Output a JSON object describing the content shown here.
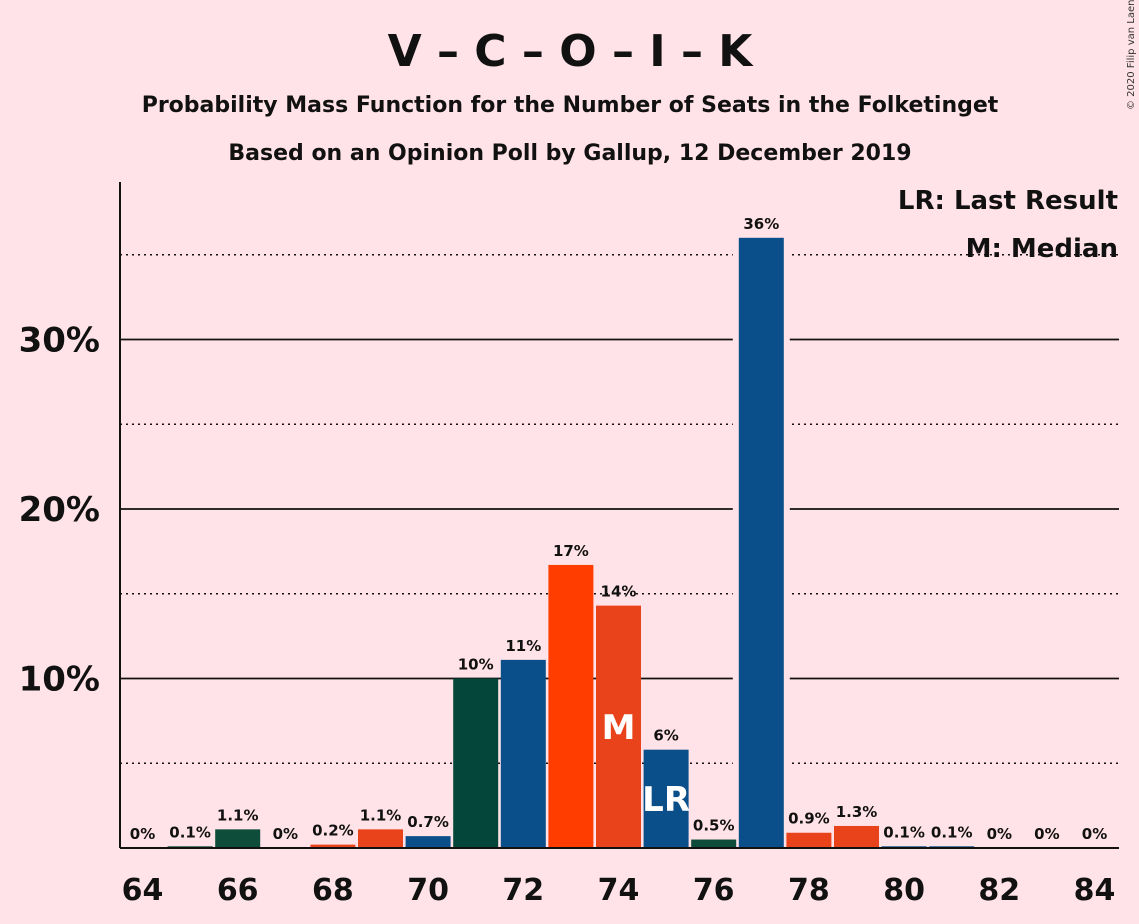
{
  "chart_data": {
    "type": "bar",
    "title": "V – C – O – I – K",
    "subtitle": "Probability Mass Function for the Number of Seats in the Folketinget",
    "subtitle2": "Based on an Opinion Poll by Gallup, 12 December 2019",
    "copyright": "© 2020 Filip van Laenen",
    "legend": {
      "last_result": "LR: Last Result",
      "median": "M: Median",
      "placement": "top-right"
    },
    "x_ticks": [
      "64",
      "66",
      "68",
      "70",
      "72",
      "74",
      "76",
      "78",
      "80",
      "82",
      "84"
    ],
    "y_ticks": [
      {
        "value": 10,
        "label": "10%"
      },
      {
        "value": 20,
        "label": "20%"
      },
      {
        "value": 30,
        "label": "30%"
      }
    ],
    "dotted_gridlines": [
      5,
      15,
      25,
      35
    ],
    "ylim": [
      0,
      39
    ],
    "xlim": [
      63.5,
      84.5
    ],
    "bars": [
      {
        "seats": 64,
        "value": 0,
        "label": "0%",
        "color": "#0E4D3A"
      },
      {
        "seats": 65,
        "value": 0.1,
        "label": "0.1%",
        "color": "#0E4D3A"
      },
      {
        "seats": 66,
        "value": 1.1,
        "label": "1.1%",
        "color": "#0E4D3A"
      },
      {
        "seats": 67,
        "value": 0,
        "label": "0%",
        "color": "#0E4D3A"
      },
      {
        "seats": 68,
        "value": 0.2,
        "label": "0.2%",
        "color": "#E8431A"
      },
      {
        "seats": 69,
        "value": 1.1,
        "label": "1.1%",
        "color": "#E8431A"
      },
      {
        "seats": 70,
        "value": 0.7,
        "label": "0.7%",
        "color": "#0A4E8A"
      },
      {
        "seats": 71,
        "value": 10,
        "label": "10%",
        "color": "#05463A"
      },
      {
        "seats": 72,
        "value": 11.1,
        "label": "11%",
        "color": "#0A4E8A"
      },
      {
        "seats": 73,
        "value": 16.7,
        "label": "17%",
        "color": "#FF3D00"
      },
      {
        "seats": 74,
        "value": 14.3,
        "label": "14%",
        "color": "#E8431A"
      },
      {
        "seats": 75,
        "value": 5.8,
        "label": "6%",
        "color": "#0A4E8A"
      },
      {
        "seats": 76,
        "value": 0.5,
        "label": "0.5%",
        "color": "#0E4D3A"
      },
      {
        "seats": 77,
        "value": 36,
        "label": "36%",
        "color": "#0A4E8A"
      },
      {
        "seats": 78,
        "value": 0.9,
        "label": "0.9%",
        "color": "#E8431A"
      },
      {
        "seats": 79,
        "value": 1.3,
        "label": "1.3%",
        "color": "#E8431A"
      },
      {
        "seats": 80,
        "value": 0.1,
        "label": "0.1%",
        "color": "#0A4E8A"
      },
      {
        "seats": 81,
        "value": 0.1,
        "label": "0.1%",
        "color": "#0A4E8A"
      },
      {
        "seats": 82,
        "value": 0,
        "label": "0%",
        "color": "#0A4E8A"
      },
      {
        "seats": 83,
        "value": 0,
        "label": "0%",
        "color": "#0A4E8A"
      },
      {
        "seats": 84,
        "value": 0,
        "label": "0%",
        "color": "#0A4E8A"
      }
    ],
    "median": {
      "seats": 74,
      "label": "M"
    },
    "last_result": {
      "seats": 75,
      "label": "LR"
    },
    "grid": true
  }
}
